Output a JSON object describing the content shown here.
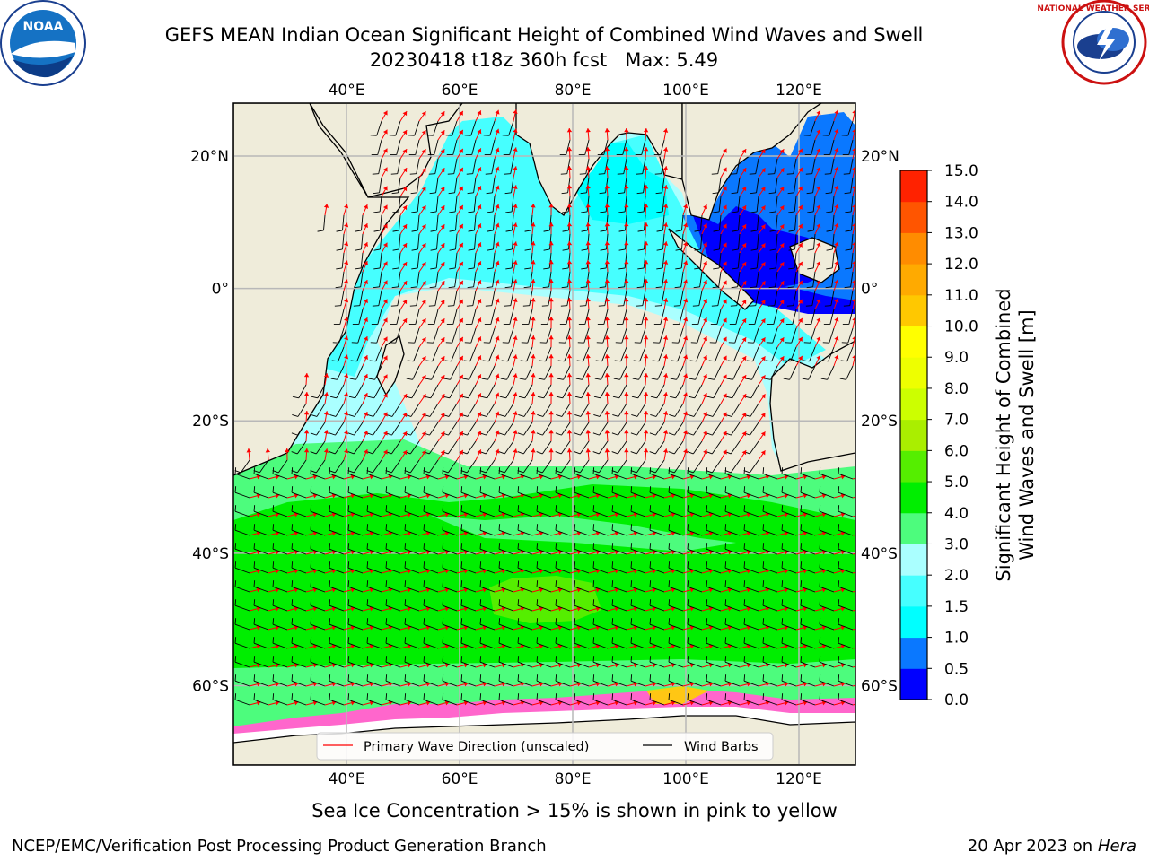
{
  "title": {
    "line1": "GEFS MEAN Indian Ocean Significant Height of Combined Wind Waves and Swell",
    "line2": "20230418 t18z 360h fcst   Max: 5.49"
  },
  "logos": {
    "left": "NOAA",
    "right": "NATIONAL WEATHER SERVICE"
  },
  "map": {
    "lon_ticks": [
      "40°E",
      "60°E",
      "80°E",
      "100°E",
      "120°E"
    ],
    "lat_ticks_left": [
      "20°N",
      "0°",
      "20°S",
      "40°S",
      "60°S"
    ],
    "lat_ticks_right": [
      "20°N",
      "0°",
      "20°S",
      "40°S",
      "60°S"
    ],
    "lon_values": [
      40,
      60,
      80,
      100,
      120
    ],
    "lat_values": [
      20,
      0,
      -20,
      -40,
      -60
    ],
    "lon_range": [
      20,
      130
    ],
    "lat_range": [
      -72,
      28
    ],
    "land_color": "#efecda",
    "grid_color": "#b8b8b8",
    "legend": {
      "wave_label": "Primary Wave Direction (unscaled)",
      "wind_label": "Wind Barbs",
      "wave_color": "#ff0000",
      "wind_color": "#000000"
    }
  },
  "colorbar": {
    "label_line1": "Significant Height of Combined",
    "label_line2": "Wind Waves and Swell [m]",
    "ticks": [
      "0.0",
      "0.5",
      "1.0",
      "1.5",
      "2.0",
      "3.0",
      "4.0",
      "5.0",
      "6.0",
      "7.0",
      "8.0",
      "9.0",
      "10.0",
      "11.0",
      "12.0",
      "13.0",
      "14.0",
      "15.0"
    ],
    "colors": [
      "#0000ff",
      "#0a78ff",
      "#00ffff",
      "#46ffff",
      "#aaffff",
      "#4dfc7d",
      "#00ee00",
      "#55ee00",
      "#aaee00",
      "#ccff00",
      "#eeff00",
      "#ffff00",
      "#ffc800",
      "#ffaa00",
      "#ff8c00",
      "#ff5500",
      "#ff2200"
    ]
  },
  "note": "Sea Ice Concentration > 15% is shown in pink to yellow",
  "footer": {
    "left": "NCEP/EMC/Verification Post Processing Product Generation Branch",
    "right_date": "20 Apr 2023 on ",
    "right_host": "Hera"
  }
}
